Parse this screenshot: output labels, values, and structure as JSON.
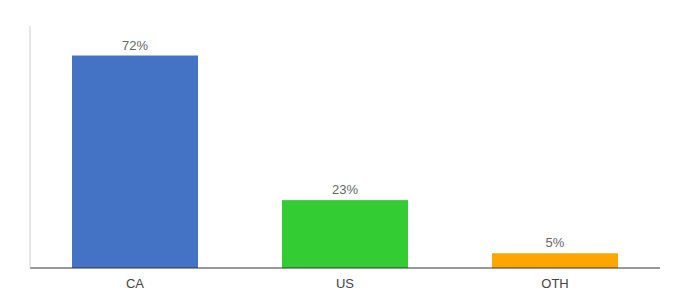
{
  "chart_data": {
    "type": "bar",
    "categories": [
      "CA",
      "US",
      "OTH"
    ],
    "values": [
      72,
      23,
      5
    ],
    "value_labels": [
      "72%",
      "23%",
      "5%"
    ],
    "colors": [
      "#4472C4",
      "#33CC33",
      "#FFA500"
    ],
    "ylim": [
      0,
      82
    ],
    "data_labels": true,
    "tick_labels": "x",
    "grid": false
  }
}
